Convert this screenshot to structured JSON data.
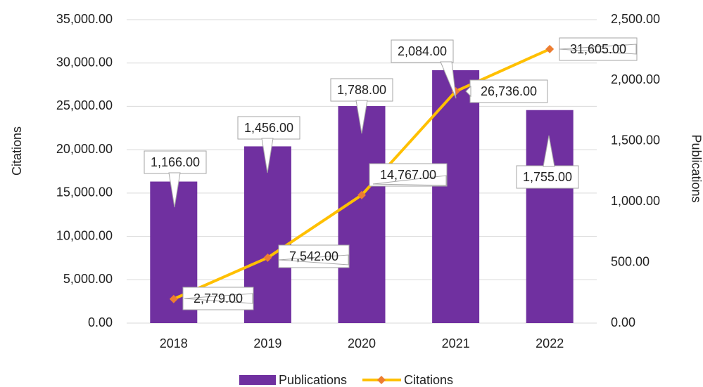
{
  "chart_data": {
    "type": "bar-line",
    "categories": [
      "2018",
      "2019",
      "2020",
      "2021",
      "2022"
    ],
    "y_label": "Citations",
    "y2_label": "Publications",
    "ylim": [
      0,
      35000
    ],
    "yticks": [
      {
        "value": 0,
        "label": "0.00"
      },
      {
        "value": 5000,
        "label": "5,000.00"
      },
      {
        "value": 10000,
        "label": "10,000.00"
      },
      {
        "value": 15000,
        "label": "15,000.00"
      },
      {
        "value": 20000,
        "label": "20,000.00"
      },
      {
        "value": 25000,
        "label": "25,000.00"
      },
      {
        "value": 30000,
        "label": "30,000.00"
      },
      {
        "value": 35000,
        "label": "35,000.00"
      }
    ],
    "y2lim": [
      0,
      2500
    ],
    "y2ticks": [
      {
        "value": 0,
        "label": "0.00"
      },
      {
        "value": 500,
        "label": "500.00"
      },
      {
        "value": 1000,
        "label": "1,000.00"
      },
      {
        "value": 1500,
        "label": "1,500.00"
      },
      {
        "value": 2000,
        "label": "2,000.00"
      },
      {
        "value": 2500,
        "label": "2,500.00"
      }
    ],
    "grid": true,
    "legend": "bottom",
    "series": [
      {
        "name": "Publications",
        "type": "bar",
        "axis": "y2",
        "color": "#7030a0",
        "values": [
          1166,
          1456,
          1788,
          2084,
          1755
        ],
        "value_labels": [
          "1,166.00",
          "1,456.00",
          "1,788.00",
          "2,084.00",
          "1,755.00"
        ]
      },
      {
        "name": "Citations",
        "type": "line",
        "axis": "y",
        "color": "#ffc000",
        "marker_color": "#ed7d31",
        "values": [
          2779,
          7542,
          14767,
          26736,
          31605
        ],
        "value_labels": [
          "2,779.00",
          "7,542.00",
          "14,767.00",
          "26,736.00",
          "31,605.00"
        ]
      }
    ]
  }
}
